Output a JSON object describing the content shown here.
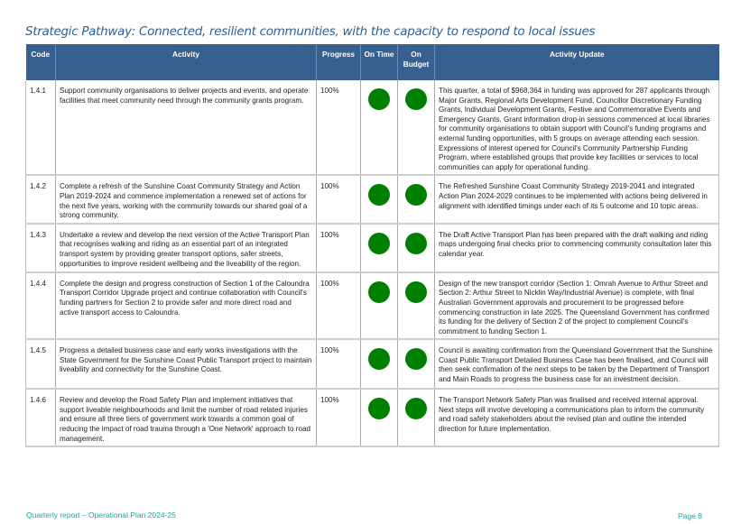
{
  "title": "Strategic Pathway: Connected, resilient communities, with the capacity to respond to local issues",
  "colors": {
    "header_bg": "#375f8f",
    "status_on_track": "#008000",
    "title": "#2c5f95",
    "footer": "#1fa3a3"
  },
  "table": {
    "headers": {
      "code": "Code",
      "activity": "Activity",
      "progress": "Progress",
      "on_time": "On Time",
      "on_budget": "On Budget",
      "update": "Activity Update"
    },
    "rows": [
      {
        "code": "1.4.1",
        "activity": "Support community organisations to deliver projects and events, and operate facilities that meet community need through the community grants program.",
        "progress": "100%",
        "on_time": "green",
        "on_budget": "green",
        "update": "This quarter, a total of $968,364 in funding was approved for 287 applicants through Major Grants, Regional Arts Development Fund, Councillor Discretionary Funding Grants, Individual Development Grants, Festive and Commemorative Events and Emergency Grants. Grant information drop-in sessions commenced at local libraries for community organisations to obtain support with Council's funding programs and external funding opportunities, with 5 groups on average attending each session. Expressions of interest opened for Council's Community Partnership Funding Program, where established groups that provide key facilities or services to local communities can apply for operational funding."
      },
      {
        "code": "1.4.2",
        "activity": "Complete a refresh of the Sunshine Coast Community Strategy and Action Plan 2019-2024 and commence implementation a renewed set of actions for the next five years, working with the community towards our shared goal of a strong community.",
        "progress": "100%",
        "on_time": "green",
        "on_budget": "green",
        "update": "The Refreshed Sunshine Coast Community Strategy 2019-2041 and integrated Action Plan 2024-2029 continues to be implemented with actions being delivered in alignment with identified timings under each of its 5 outcome and 10 topic areas."
      },
      {
        "code": "1.4.3",
        "activity": "Undertake a review and develop the next version of the Active Transport Plan that recognises walking and riding as an essential part of an integrated transport system by providing greater transport options, safer streets, opportunities to improve resident wellbeing and the liveability of the region.",
        "progress": "100%",
        "on_time": "green",
        "on_budget": "green",
        "update": "The Draft Active Transport Plan has been prepared with the draft walking and riding maps undergoing final checks prior to commencing community consultation later this calendar year."
      },
      {
        "code": "1.4.4",
        "activity": "Complete the design and progress construction of Section 1 of the Caloundra Transport Corridor Upgrade project and continue collaboration with Council's funding partners for Section 2 to provide safer and more direct road and active transport access to Caloundra.",
        "progress": "100%",
        "on_time": "green",
        "on_budget": "green",
        "update": "Design of the new transport corridor (Section 1: Omrah Avenue to Arthur Street and Section 2: Arthur Street to Nicklin Way/Industrial Avenue) is complete, with final Australian Government approvals and procurement to be progressed before commencing construction in late 2025. The Queensland Government has confirmed its funding for the delivery of Section 2 of the project to complement Council's commitment to funding Section 1."
      },
      {
        "code": "1.4.5",
        "activity": "Progress a detailed business case and early works investigations with the State Government for the Sunshine Coast Public Transport project to maintain liveability and connectivity for the Sunshine Coast.",
        "progress": "100%",
        "on_time": "green",
        "on_budget": "green",
        "update": "Council is awaiting confirmation from the Queensland Government that the Sunshine Coast Public Transport Detailed Business Case has been finalised, and Council will then seek confirmation of the next steps to be taken by the Department of Transport and Main Roads to progress the business case for an investment decision."
      },
      {
        "code": "1.4.6",
        "activity": "Review and develop the Road Safety Plan and implement initiatives that support liveable neighbourhoods and limit the number of road related injuries and ensure all three tiers of government work towards a common goal of reducing the impact of road trauma through a 'One Network' approach to road management.",
        "progress": "100%",
        "on_time": "green",
        "on_budget": "green",
        "update": "The Transport Network Safety Plan was finalised and received internal approval. Next steps will involve developing a communications plan to inform the community and road safety stakeholders about the revised plan and outline the intended direction for future implementation."
      }
    ]
  },
  "footer": {
    "left": "Quarterly report – Operational Plan 2024-25",
    "right": "Page 8"
  }
}
